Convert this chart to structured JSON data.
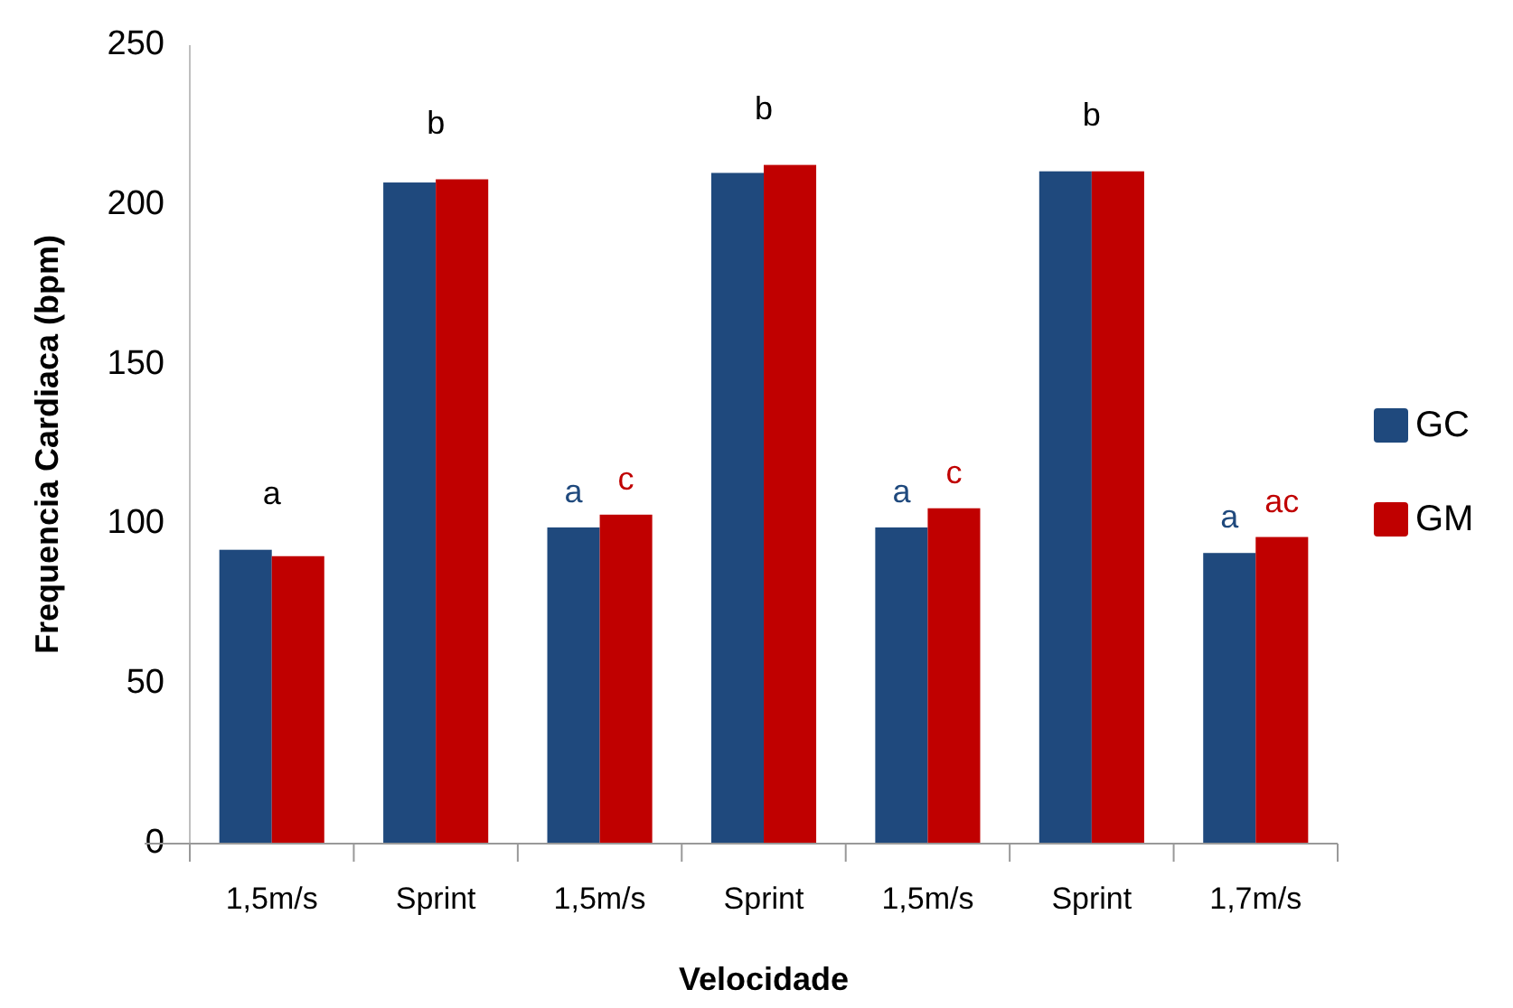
{
  "chart_data": {
    "type": "bar",
    "xlabel": "Velocidade",
    "ylabel": "Frequencia Cardiaca (bpm)",
    "categories": [
      "1,5m/s",
      "Sprint",
      "1,5m/s",
      "Sprint",
      "1,5m/s",
      "Sprint",
      "1,7m/s"
    ],
    "series": [
      {
        "name": "GC",
        "color": "#1f497d",
        "values": [
          92,
          207,
          99,
          210,
          99,
          210.5,
          91
        ],
        "value_labels": [
          null,
          null,
          "a",
          null,
          "a",
          null,
          "a"
        ]
      },
      {
        "name": "GM",
        "color": "#c00000",
        "values": [
          90,
          208,
          103,
          212.5,
          105,
          210.5,
          96
        ],
        "value_labels": [
          null,
          null,
          "c",
          null,
          "c",
          null,
          "ac"
        ]
      }
    ],
    "annotations": [
      "a",
      "b",
      "b",
      "b"
    ],
    "ylim": [
      0,
      250
    ],
    "yticks": [
      0,
      50,
      100,
      150,
      200,
      250
    ],
    "grid": false,
    "legend": "right"
  }
}
